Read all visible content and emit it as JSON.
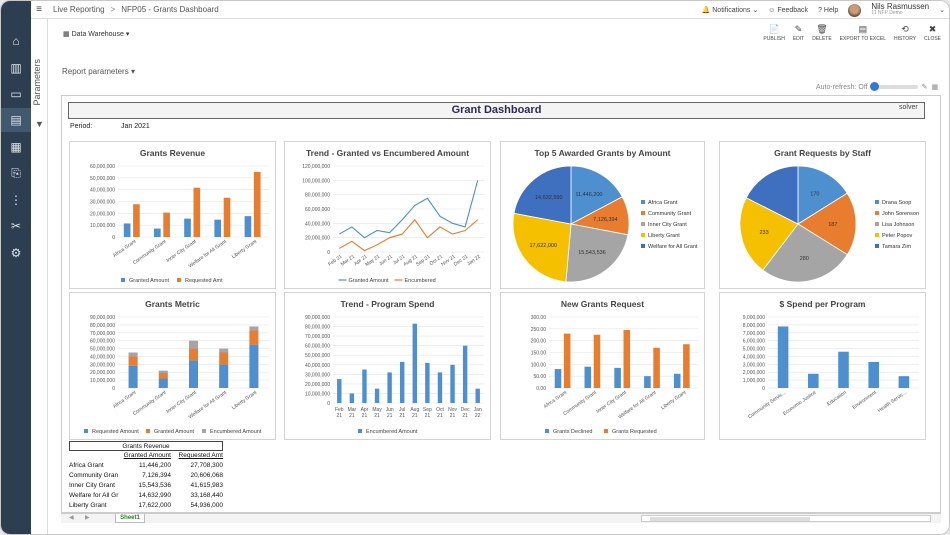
{
  "topbar": {
    "crumb1": "Live Reporting",
    "crumb2": "NFP05 - Grants Dashboard",
    "notifications": "Notifications",
    "feedback": "Feedback",
    "help": "Help",
    "user_name": "Nils Rasmussen",
    "user_role": "11 NFP Demo"
  },
  "nav_icons": [
    "home-icon",
    "building-icon",
    "clipboard-icon",
    "report-icon",
    "calculator-icon",
    "data-icon",
    "hierarchy-icon",
    "tools-icon",
    "gear-icon"
  ],
  "params_label": "Parameters",
  "datawarehouse": "Data Warehouse",
  "actions": [
    {
      "icon": "📄",
      "label": "PUBLISH"
    },
    {
      "icon": "✎",
      "label": "EDIT"
    },
    {
      "icon": "🗑",
      "label": "DELETE"
    },
    {
      "icon": "▤",
      "label": "EXPORT TO EXCEL"
    },
    {
      "icon": "⟲",
      "label": "HISTORY"
    },
    {
      "icon": "✖",
      "label": "CLOSE"
    }
  ],
  "report_params": "Report parameters",
  "auto_refresh": "Auto-refresh: Off",
  "dashboard": {
    "title": "Grant Dashboard",
    "period_label": "Period:",
    "period_value": "Jan 2021",
    "logo": "solver"
  },
  "chart_data": [
    {
      "id": "grants-revenue",
      "type": "bar",
      "title": "Grants Revenue",
      "categories": [
        "Africa Grant",
        "Community Grant",
        "Inner City Grant",
        "Welfare for All Grant",
        "Liberty Grant"
      ],
      "series": [
        {
          "name": "Granted Amount",
          "color": "#4e8fd0",
          "values": [
            11446200,
            7126394,
            15543536,
            14632990,
            17622000
          ]
        },
        {
          "name": "Requested Amt",
          "color": "#e87d2f",
          "values": [
            27708300,
            20606068,
            41615983,
            33168440,
            54936000
          ]
        }
      ],
      "yticks": [
        0,
        10000000,
        20000000,
        30000000,
        40000000,
        50000000,
        60000000
      ],
      "ylim": [
        0,
        60000000
      ]
    },
    {
      "id": "trend-granted",
      "type": "line",
      "title": "Trend - Granted vs Encumbered Amount",
      "categories": [
        "Feb 21",
        "Mar 21",
        "Apr 21",
        "May 21",
        "Jun 21",
        "Jul 21",
        "Aug 21",
        "Sep 21",
        "Oct 21",
        "Nov 21",
        "Dec 21",
        "Jan 22"
      ],
      "series": [
        {
          "name": "Granted Amount",
          "color": "#4e8fd0",
          "values": [
            25000000,
            35000000,
            20000000,
            30000000,
            27000000,
            45000000,
            65000000,
            75000000,
            50000000,
            40000000,
            35000000,
            100000000
          ]
        },
        {
          "name": "Encumbered",
          "color": "#e87d2f",
          "values": [
            5000000,
            15000000,
            2000000,
            10000000,
            20000000,
            25000000,
            45000000,
            20000000,
            35000000,
            25000000,
            30000000,
            45000000
          ]
        }
      ],
      "yticks": [
        0,
        20000000,
        40000000,
        60000000,
        80000000,
        100000000,
        120000000
      ],
      "ylim": [
        0,
        120000000
      ]
    },
    {
      "id": "top5",
      "type": "pie",
      "title": "Top 5 Awarded Grants by Amount",
      "categories": [
        "Africa Grant",
        "Community Grant",
        "Inner City Grant",
        "Liberty Grant",
        "Welfare for All Grant"
      ],
      "values": [
        11446200,
        7126394,
        15543536,
        17622000,
        14632990
      ],
      "labels": [
        "11,446,200",
        "7,126,394",
        "15,543,536",
        "17,622,000",
        "14,632,990"
      ],
      "colors": [
        "#4e8fd0",
        "#e87d2f",
        "#a5a5a5",
        "#f5c000",
        "#3f6fbf"
      ]
    },
    {
      "id": "requests-staff",
      "type": "pie",
      "title": "Grant Requests by Staff",
      "categories": [
        "Drana Soop",
        "John Sorenson",
        "Lisa Johnson",
        "Peter Popov",
        "Tamara Zim"
      ],
      "values": [
        170,
        187,
        280,
        233,
        185
      ],
      "labels": [
        "170",
        "187",
        "280",
        "233",
        ""
      ],
      "colors": [
        "#4e8fd0",
        "#e87d2f",
        "#a5a5a5",
        "#f5c000",
        "#3f6fbf"
      ]
    },
    {
      "id": "grants-metric",
      "type": "bar",
      "stacked": true,
      "title": "Grants Metric",
      "categories": [
        "Africa Grant",
        "Community Grant",
        "Inner City Grant",
        "Welfare for All Grant",
        "Liberty Grant"
      ],
      "series": [
        {
          "name": "Requested Amount",
          "color": "#4e8fd0",
          "values": [
            28000000,
            12000000,
            35000000,
            30000000,
            55000000
          ]
        },
        {
          "name": "Granted Amount",
          "color": "#e87d2f",
          "values": [
            12000000,
            7000000,
            15000000,
            15000000,
            18000000
          ]
        },
        {
          "name": "Encumbered Amount",
          "color": "#a5a5a5",
          "values": [
            5000000,
            3000000,
            10000000,
            5000000,
            5000000
          ]
        }
      ],
      "yticks": [
        0,
        10000000,
        20000000,
        30000000,
        40000000,
        50000000,
        60000000,
        70000000,
        80000000,
        90000000
      ],
      "ylim": [
        0,
        90000000
      ]
    },
    {
      "id": "trend-spend",
      "type": "bar",
      "title": "Trend - Program Spend",
      "categories": [
        "Feb 21",
        "Mar 21",
        "Apr 21",
        "May 21",
        "Jun 21",
        "Jul 21",
        "Aug 21",
        "Sep 21",
        "Oct 21",
        "Nov 21",
        "Dec 21",
        "Jan 22"
      ],
      "series": [
        {
          "name": "Encumbered Amount",
          "color": "#4e8fd0",
          "values": [
            25000000,
            10000000,
            35000000,
            15000000,
            32000000,
            43000000,
            83000000,
            42000000,
            32000000,
            40000000,
            60000000,
            15000000
          ]
        }
      ],
      "yticks": [
        0,
        10000000,
        20000000,
        30000000,
        40000000,
        50000000,
        60000000,
        70000000,
        80000000,
        90000000
      ],
      "ylim": [
        0,
        90000000
      ]
    },
    {
      "id": "new-requests",
      "type": "bar",
      "title": "New Grants Request",
      "categories": [
        "Africa Grant",
        "Community Grant",
        "Inner City Grant",
        "Welfare for All Grant",
        "Liberty Grant"
      ],
      "series": [
        {
          "name": "Grants Declined",
          "color": "#4e8fd0",
          "values": [
            80,
            90,
            85,
            50,
            60
          ]
        },
        {
          "name": "Grants Requested",
          "color": "#e87d2f",
          "values": [
            230,
            225,
            245,
            170,
            185
          ]
        }
      ],
      "yticks": [
        0,
        50,
        100,
        150,
        200,
        250,
        300
      ],
      "ylim": [
        0,
        300
      ]
    },
    {
      "id": "spend-program",
      "type": "bar",
      "title": "$ Spend per Program",
      "categories": [
        "Community Servic...",
        "Economic Justice",
        "Education",
        "Environment",
        "Health Servic..."
      ],
      "series": [
        {
          "name": "",
          "color": "#4e8fd0",
          "values": [
            7800000,
            1800000,
            4600000,
            3300000,
            1500000
          ]
        }
      ],
      "yticks": [
        0,
        1000000,
        2000000,
        3000000,
        4000000,
        5000000,
        6000000,
        7000000,
        8000000,
        9000000
      ],
      "ylim": [
        0,
        9000000
      ]
    }
  ],
  "table": {
    "title": "Grants Revenue",
    "col1": "Granted Amount",
    "col2": "Requested Amt",
    "rows": [
      [
        "Africa Grant",
        "11,446,200",
        "27,708,300"
      ],
      [
        "Community Gran",
        "7,126,394",
        "20,606,068"
      ],
      [
        "Inner City Grant",
        "15,543,536",
        "41,615,983"
      ],
      [
        "Welfare for All Gr",
        "14,632,990",
        "33,168,440"
      ],
      [
        "Liberty Grant",
        "17,622,000",
        "54,936,000"
      ]
    ]
  },
  "sheet_tab": "Sheet1"
}
